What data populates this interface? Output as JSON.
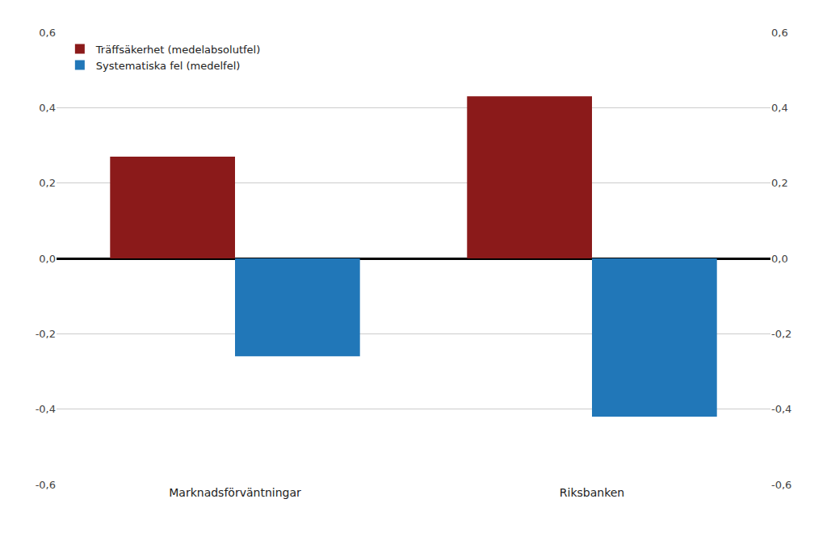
{
  "chart_data": {
    "type": "bar",
    "categories": [
      "Marknadsförväntningar",
      "Riksbanken"
    ],
    "series": [
      {
        "name": "Träffsäkerhet (medelabsolutfel)",
        "color": "#8B1A1A",
        "values": [
          0.27,
          0.43
        ]
      },
      {
        "name": "Systematiska fel (medelfel)",
        "color": "#2177B8",
        "values": [
          -0.26,
          -0.42
        ]
      }
    ],
    "ylim": [
      -0.6,
      0.6
    ],
    "yticks": [
      {
        "value": -0.6,
        "label": "-0,6"
      },
      {
        "value": -0.4,
        "label": "-0,4"
      },
      {
        "value": -0.2,
        "label": "-0,2"
      },
      {
        "value": 0.0,
        "label": "0,0"
      },
      {
        "value": 0.2,
        "label": "0,2"
      },
      {
        "value": 0.4,
        "label": "0,4"
      },
      {
        "value": 0.6,
        "label": "0,6"
      }
    ],
    "y2lim": [
      -0.6,
      0.6
    ],
    "y2ticks": [
      {
        "value": -0.6,
        "label": "-0,6"
      },
      {
        "value": -0.4,
        "label": "-0,4"
      },
      {
        "value": -0.2,
        "label": "-0,2"
      },
      {
        "value": 0.0,
        "label": "0,0"
      },
      {
        "value": 0.2,
        "label": "0,2"
      },
      {
        "value": 0.4,
        "label": "0,4"
      },
      {
        "value": 0.6,
        "label": "0,6"
      }
    ],
    "grid": true,
    "legend": "upper left"
  }
}
